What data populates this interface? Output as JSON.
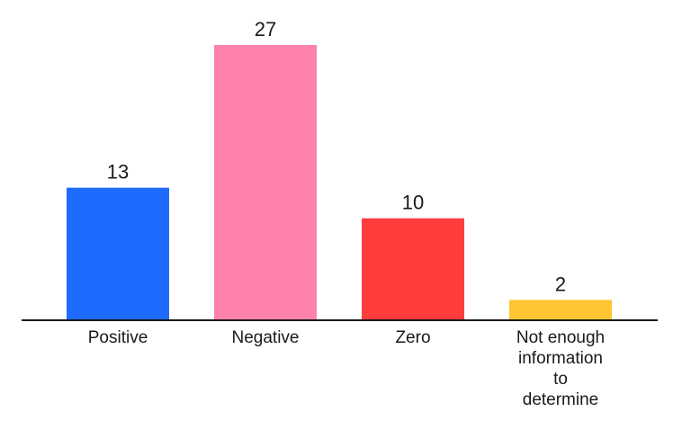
{
  "chart_data": {
    "type": "bar",
    "title": "",
    "xlabel": "",
    "ylabel": "",
    "categories": [
      "Positive",
      "Negative",
      "Zero",
      "Not enough information to determine"
    ],
    "category_label_lines": [
      [
        "Positive"
      ],
      [
        "Negative"
      ],
      [
        "Zero"
      ],
      [
        "Not enough",
        "information",
        "to",
        "determine"
      ]
    ],
    "values": [
      13,
      27,
      10,
      2
    ],
    "colors": [
      "#1f6bff",
      "#ff82ab",
      "#ff3d3d",
      "#ffc533"
    ],
    "ylim": [
      0,
      27
    ],
    "grid": false,
    "show_data_labels": true
  }
}
